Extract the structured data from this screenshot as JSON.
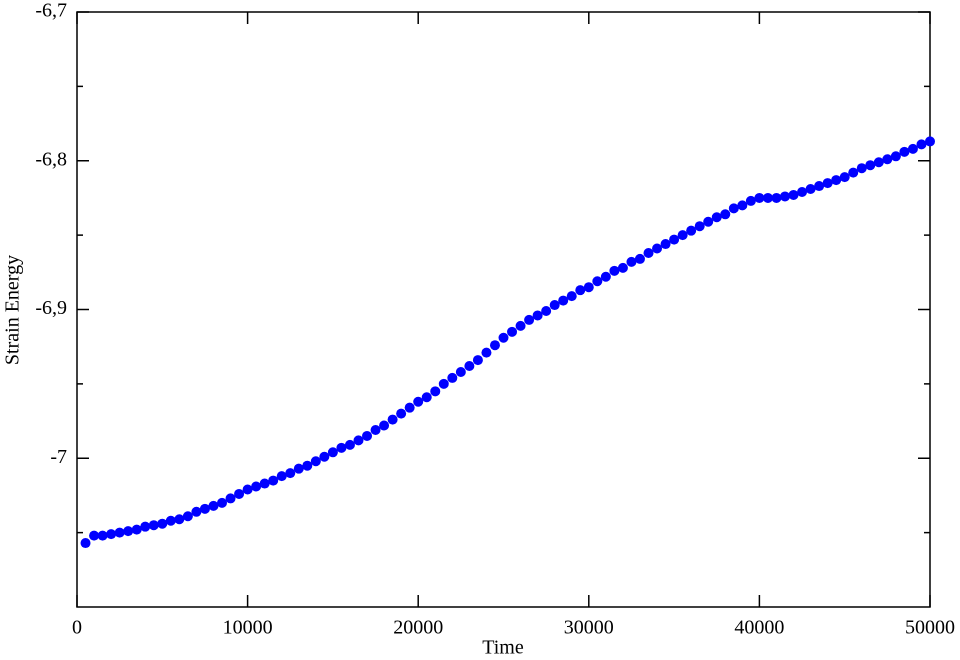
{
  "chart_data": {
    "type": "scatter",
    "x_label": "Time",
    "y_label": "Strain Energy",
    "series": [
      {
        "color": "#0000ff",
        "x": [
          500,
          1000,
          1500,
          2000,
          2500,
          3000,
          3500,
          4000,
          4500,
          5000,
          5500,
          6000,
          6500,
          7000,
          7500,
          8000,
          8500,
          9000,
          9500,
          10000,
          10500,
          11000,
          11500,
          12000,
          12500,
          13000,
          13500,
          14000,
          14500,
          15000,
          15500,
          16000,
          16500,
          17000,
          17500,
          18000,
          18500,
          19000,
          19500,
          20000,
          20500,
          21000,
          21500,
          22000,
          22500,
          23000,
          23500,
          24000,
          24500,
          25000,
          25500,
          26000,
          26500,
          27000,
          27500,
          28000,
          28500,
          29000,
          29500,
          30000,
          30500,
          31000,
          31500,
          32000,
          32500,
          33000,
          33500,
          34000,
          34500,
          35000,
          35500,
          36000,
          36500,
          37000,
          37500,
          38000,
          38500,
          39000,
          39500,
          40000,
          40500,
          41000,
          41500,
          42000,
          42500,
          43000,
          43500,
          44000,
          44500,
          45000,
          45500,
          46000,
          46500,
          47000,
          47500,
          48000,
          48500,
          49000,
          49500,
          50000
        ],
        "values": [
          -7.057,
          -7.052,
          -7.052,
          -7.051,
          -7.05,
          -7.049,
          -7.048,
          -7.046,
          -7.045,
          -7.044,
          -7.042,
          -7.041,
          -7.039,
          -7.036,
          -7.034,
          -7.032,
          -7.03,
          -7.027,
          -7.024,
          -7.021,
          -7.019,
          -7.017,
          -7.015,
          -7.012,
          -7.01,
          -7.007,
          -7.005,
          -7.002,
          -6.999,
          -6.996,
          -6.993,
          -6.991,
          -6.988,
          -6.985,
          -6.981,
          -6.978,
          -6.974,
          -6.97,
          -6.966,
          -6.962,
          -6.959,
          -6.955,
          -6.95,
          -6.946,
          -6.942,
          -6.938,
          -6.934,
          -6.929,
          -6.924,
          -6.919,
          -6.915,
          -6.911,
          -6.907,
          -6.904,
          -6.901,
          -6.897,
          -6.894,
          -6.891,
          -6.887,
          -6.885,
          -6.881,
          -6.878,
          -6.874,
          -6.872,
          -6.868,
          -6.866,
          -6.862,
          -6.859,
          -6.856,
          -6.853,
          -6.85,
          -6.847,
          -6.844,
          -6.841,
          -6.838,
          -6.836,
          -6.832,
          -6.83,
          -6.827,
          -6.825,
          -6.825,
          -6.825,
          -6.824,
          -6.823,
          -6.821,
          -6.819,
          -6.817,
          -6.815,
          -6.813,
          -6.811,
          -6.808,
          -6.805,
          -6.803,
          -6.801,
          -6.799,
          -6.797,
          -6.794,
          -6.792,
          -6.789,
          -6.787
        ]
      }
    ],
    "xlim": [
      0,
      50000
    ],
    "xticks": [
      0,
      10000,
      20000,
      30000,
      40000,
      50000
    ],
    "ylim": [
      -7.1,
      -6.7
    ],
    "yticks": [
      -7,
      {
        "value": -6.9,
        "label": "-6,9"
      },
      {
        "value": -6.8,
        "label": "-6,8"
      },
      {
        "value": -6.7,
        "label": "-6,7"
      }
    ],
    "grid": false
  }
}
